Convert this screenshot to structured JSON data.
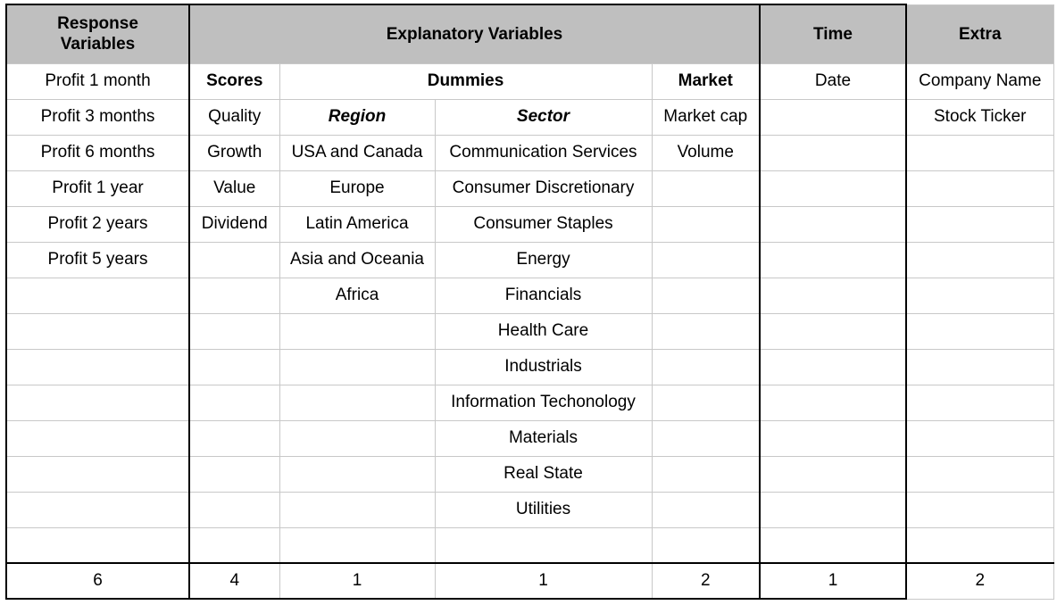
{
  "headers": {
    "response": "Response Variables",
    "explanatory": "Explanatory Variables",
    "time": "Time",
    "extra": "Extra"
  },
  "subheaders": {
    "response": "Profit 1 month",
    "scores": "Scores",
    "dummies": "Dummies",
    "market": "Market",
    "time": "Date",
    "extra": "Company Name"
  },
  "labels": {
    "response": "Profit 3 months",
    "scores": "Quality",
    "region": "Region",
    "sector": "Sector",
    "market": "Market cap",
    "extra": "Stock Ticker"
  },
  "columns": {
    "response": [
      "Profit 6 months",
      "Profit 1 year",
      "Profit 2 years",
      "Profit 5 years"
    ],
    "scores": [
      "Growth",
      "Value",
      "Dividend"
    ],
    "region": [
      "USA and Canada",
      "Europe",
      "Latin America",
      "Asia and Oceania",
      "Africa"
    ],
    "sector": [
      "Communication Services",
      "Consumer Discretionary",
      "Consumer Staples",
      "Energy",
      "Financials",
      "Health Care",
      "Industrials",
      "Information Techonology",
      "Materials",
      "Real State",
      "Utilities"
    ],
    "market": [
      "Volume"
    ]
  },
  "totals": {
    "response": "6",
    "scores": "4",
    "region": "1",
    "sector": "1",
    "market": "2",
    "time": "1",
    "extra": "2"
  }
}
